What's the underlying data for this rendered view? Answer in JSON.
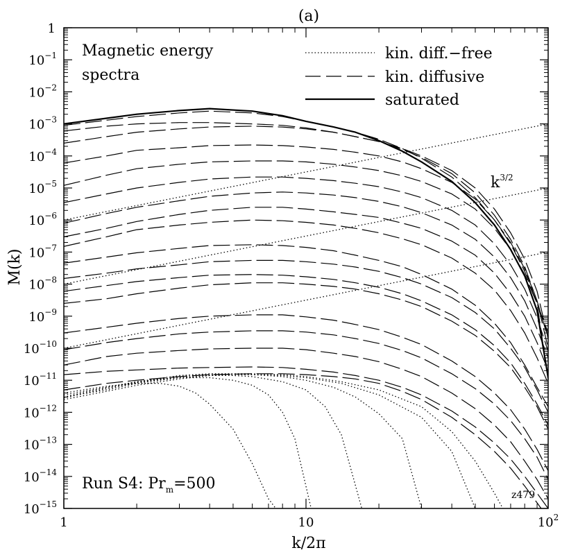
{
  "chart_data": {
    "type": "line",
    "panel_label": "(a)",
    "title_lines": [
      "Magnetic energy",
      "spectra"
    ],
    "xlabel": "k/2π",
    "ylabel": "M(k)",
    "x_scale": "log",
    "y_scale": "log",
    "xlim": [
      1,
      100
    ],
    "ylim": [
      1e-15,
      1
    ],
    "x_ticks": [
      {
        "value": 1,
        "label": "1"
      },
      {
        "value": 10,
        "label": "10"
      },
      {
        "value": 100,
        "label": "10",
        "exp": "2"
      }
    ],
    "y_ticks": [
      {
        "value": 1,
        "label": "1",
        "exp": ""
      },
      {
        "value": 0.1,
        "label": "10",
        "exp": "−1"
      },
      {
        "value": 0.01,
        "label": "10",
        "exp": "−2"
      },
      {
        "value": 0.001,
        "label": "10",
        "exp": "−3"
      },
      {
        "value": 0.0001,
        "label": "10",
        "exp": "−4"
      },
      {
        "value": 1e-05,
        "label": "10",
        "exp": "−5"
      },
      {
        "value": 1e-06,
        "label": "10",
        "exp": "−6"
      },
      {
        "value": 1e-07,
        "label": "10",
        "exp": "−7"
      },
      {
        "value": 1e-08,
        "label": "10",
        "exp": "−8"
      },
      {
        "value": 1e-09,
        "label": "10",
        "exp": "−9"
      },
      {
        "value": 1e-10,
        "label": "10",
        "exp": "−10"
      },
      {
        "value": 1e-11,
        "label": "10",
        "exp": "−11"
      },
      {
        "value": 1e-12,
        "label": "10",
        "exp": "−12"
      },
      {
        "value": 1e-13,
        "label": "10",
        "exp": "−13"
      },
      {
        "value": 1e-14,
        "label": "10",
        "exp": "−14"
      },
      {
        "value": 1e-15,
        "label": "10",
        "exp": "−15"
      }
    ],
    "legend": {
      "placement": "top-right",
      "entries": [
        {
          "label": "kin. diff.−free",
          "style": "dotted"
        },
        {
          "label": "kin. diffusive",
          "style": "dashed"
        },
        {
          "label": "saturated",
          "style": "solid"
        }
      ]
    },
    "annotations": {
      "slope": {
        "base": "k",
        "exp": "3/2"
      },
      "run": {
        "text": "Run S4: Pr",
        "sub": "m",
        "tail": "=500"
      },
      "id": "z479"
    },
    "k_grid": [
      1,
      1.5,
      2,
      3,
      4,
      6,
      8,
      10,
      13,
      16,
      20,
      25,
      30,
      40,
      50,
      60,
      70,
      80,
      90,
      100
    ],
    "series": [
      {
        "style": "solid",
        "y": [
          0.001,
          0.0015,
          0.002,
          0.0026,
          0.003,
          0.0025,
          0.0018,
          0.0012,
          0.0008,
          0.00055,
          0.0003,
          0.00014,
          6.5e-05,
          1.6e-05,
          3.5e-06,
          7e-07,
          1.2e-07,
          1.8e-08,
          1.5e-09,
          1.2e-11
        ]
      },
      {
        "style": "dashed",
        "y": [
          0.0009,
          0.0013,
          0.0017,
          0.0022,
          0.0025,
          0.0022,
          0.0017,
          0.0012,
          0.0008,
          0.00055,
          0.00033,
          0.00017,
          8.5e-05,
          2.2e-05,
          5e-06,
          1e-06,
          1.8e-07,
          2.5e-08,
          2.5e-09,
          1e-11
        ]
      },
      {
        "style": "dashed",
        "y": [
          0.0006,
          0.00085,
          0.001,
          0.0011,
          0.0011,
          0.001,
          0.0009,
          0.00075,
          0.00055,
          0.0004,
          0.00028,
          0.00016,
          9e-05,
          2.8e-05,
          7e-06,
          1.4e-06,
          2.5e-07,
          3.5e-08,
          3e-09,
          1e-10
        ]
      },
      {
        "style": "dashed",
        "y": [
          0.00025,
          0.0004,
          0.00055,
          0.0007,
          0.0008,
          0.00085,
          0.0008,
          0.0007,
          0.00055,
          0.0004,
          0.00028,
          0.00017,
          0.0001,
          3.5e-05,
          1e-05,
          2.2e-06,
          4e-07,
          6e-08,
          6e-09,
          2e-10
        ]
      },
      {
        "style": "dashed",
        "y": [
          6e-05,
          0.0001,
          0.00015,
          0.00018,
          0.00021,
          0.00022,
          0.00021,
          0.00019,
          0.00016,
          0.00013,
          0.0001,
          6.5e-05,
          4e-05,
          1.5e-05,
          4.5e-06,
          1e-06,
          2e-07,
          3e-08,
          3e-09,
          2e-10
        ]
      },
      {
        "style": "dashed",
        "y": [
          1.2e-05,
          2.5e-05,
          4e-05,
          5.5e-05,
          6.5e-05,
          7e-05,
          7e-05,
          6.5e-05,
          5.5e-05,
          4.5e-05,
          3.5e-05,
          2.4e-05,
          1.6e-05,
          6.5e-06,
          2.2e-06,
          5.5e-07,
          1.2e-07,
          2e-08,
          2.5e-09,
          3e-10
        ]
      },
      {
        "style": "dashed",
        "y": [
          3.5e-06,
          6.5e-06,
          1e-05,
          1.5e-05,
          1.9e-05,
          2.2e-05,
          2.2e-05,
          2e-05,
          1.7e-05,
          1.4e-05,
          1.1e-05,
          7.5e-06,
          5e-06,
          2e-06,
          7e-07,
          1.8e-07,
          4e-08,
          7e-09,
          9e-10,
          8e-11
        ]
      },
      {
        "style": "dashed",
        "y": [
          8e-07,
          1.6e-06,
          2.5e-06,
          4e-06,
          5.5e-06,
          7e-06,
          7.5e-06,
          7e-06,
          6e-06,
          5e-06,
          3.8e-06,
          2.6e-06,
          1.7e-06,
          7e-07,
          2.5e-07,
          7e-08,
          1.6e-08,
          3e-09,
          4e-10,
          5e-11
        ]
      },
      {
        "style": "dashed",
        "y": [
          3e-07,
          5.5e-07,
          9e-07,
          1.5e-06,
          2e-06,
          2.5e-06,
          2.5e-06,
          2.2e-06,
          1.8e-06,
          1.5e-06,
          1.2e-06,
          8e-07,
          5.5e-07,
          2.2e-07,
          8e-08,
          2.2e-08,
          5e-09,
          1e-09,
          1.5e-10,
          2e-11
        ]
      },
      {
        "style": "dashed",
        "y": [
          1.5e-07,
          3e-07,
          5e-07,
          7e-07,
          8.5e-07,
          1e-06,
          9.5e-07,
          8.5e-07,
          7e-07,
          5.5e-07,
          4e-07,
          2.6e-07,
          1.7e-07,
          6.5e-08,
          2.2e-08,
          6.5e-09,
          1.5e-09,
          3e-10,
          5e-11,
          8e-12
        ]
      },
      {
        "style": "dashed",
        "y": [
          4.5e-08,
          7e-08,
          9.5e-08,
          1.3e-07,
          1.6e-07,
          1.7e-07,
          1.6e-07,
          1.4e-07,
          1.1e-07,
          8e-08,
          5.5e-08,
          3.5e-08,
          2e-08,
          7e-09,
          2.2e-09,
          6e-10,
          1.5e-10,
          3e-11,
          6e-12,
          1.5e-12
        ]
      },
      {
        "style": "dashed",
        "y": [
          1.5e-08,
          2.2e-08,
          3e-08,
          4e-08,
          5e-08,
          5.5e-08,
          5.5e-08,
          5e-08,
          4.2e-08,
          3.4e-08,
          2.5e-08,
          1.6e-08,
          1e-08,
          3.8e-09,
          1.3e-09,
          4e-10,
          1e-10,
          2.5e-11,
          5e-12,
          1e-12
        ]
      },
      {
        "style": "dashed",
        "y": [
          6e-09,
          9e-09,
          1.2e-08,
          1.6e-08,
          1.9e-08,
          2e-08,
          1.9e-08,
          1.7e-08,
          1.4e-08,
          1.1e-08,
          8e-09,
          5e-09,
          3e-09,
          1.1e-09,
          3.8e-10,
          1.2e-10,
          3.5e-11,
          8e-12,
          1.8e-12,
          4e-13
        ]
      },
      {
        "style": "dashed",
        "y": [
          2.5e-09,
          3.5e-09,
          5e-09,
          7.5e-09,
          9.5e-09,
          1.1e-08,
          1.1e-08,
          1e-08,
          8.5e-09,
          7e-09,
          5e-09,
          3.2e-09,
          2e-09,
          7e-10,
          2.5e-10,
          8e-11,
          2.5e-11,
          6e-12,
          1.5e-12,
          3e-13
        ]
      },
      {
        "style": "dashed",
        "y": [
          3e-10,
          4.5e-10,
          6e-10,
          8.5e-10,
          1e-09,
          1.1e-09,
          1.1e-09,
          9.5e-10,
          7.5e-10,
          5.5e-10,
          3.8e-10,
          2.2e-10,
          1.3e-10,
          4e-11,
          1.3e-11,
          4e-12,
          1.2e-12,
          3e-13,
          7e-14,
          1.5e-14
        ]
      },
      {
        "style": "dashed",
        "y": [
          9e-11,
          1.5e-10,
          2e-10,
          2.8e-10,
          3.2e-10,
          3.5e-10,
          3.5e-10,
          3.2e-10,
          2.6e-10,
          2e-10,
          1.4e-10,
          8.5e-11,
          5e-11,
          1.6e-11,
          5.5e-12,
          1.8e-12,
          5.5e-13,
          1.5e-13,
          4e-14,
          8e-15
        ]
      },
      {
        "style": "dashed",
        "y": [
          3e-11,
          5.5e-11,
          7e-11,
          8.5e-11,
          9.5e-11,
          1e-10,
          1e-10,
          9e-11,
          7e-11,
          5.5e-11,
          3.8e-11,
          2.2e-11,
          1.3e-11,
          4e-12,
          1.3e-12,
          4e-13,
          1.2e-13,
          3e-14,
          8e-15,
          2e-15
        ]
      },
      {
        "style": "dashed",
        "y": [
          1.5e-11,
          1.9e-11,
          2.1e-11,
          2.4e-11,
          2.5e-11,
          2.6e-11,
          2.5e-11,
          2.2e-11,
          1.8e-11,
          1.4e-11,
          1e-11,
          6e-12,
          3.5e-12,
          1.1e-12,
          3.5e-13,
          1.1e-13,
          3.5e-14,
          1e-14,
          3e-15,
          1e-15
        ]
      },
      {
        "style": "dashed",
        "y": [
          5e-12,
          8e-12,
          1e-11,
          1.3e-11,
          1.5e-11,
          1.6e-11,
          1.6e-11,
          1.5e-11,
          1.3e-11,
          1.1e-11,
          8e-12,
          4.5e-12,
          2.5e-12,
          7e-13,
          2e-13,
          6e-14,
          1.8e-14,
          5e-15,
          1.5e-15,
          5e-16
        ]
      },
      {
        "style": "dotted",
        "x": [
          1,
          1.5,
          2,
          3,
          4,
          5,
          6,
          8,
          10,
          13,
          16,
          20,
          25,
          30
        ],
        "y": [
          2.5e-12,
          4.5e-12,
          7e-12,
          1.1e-11,
          1.4e-11,
          1.5e-11,
          1.5e-11,
          1.3e-11,
          1e-11,
          6e-12,
          3e-12,
          9e-13,
          1.5e-13,
          1e-15
        ]
      },
      {
        "style": "dotted",
        "x": [
          1,
          1.5,
          2,
          3,
          4,
          5,
          6,
          8,
          10,
          12,
          14,
          17
        ],
        "y": [
          3e-12,
          5e-12,
          8e-12,
          1.2e-11,
          1.4e-11,
          1.4e-11,
          1.3e-11,
          9e-12,
          5e-12,
          1.5e-12,
          2e-13,
          1e-15
        ]
      },
      {
        "style": "dotted",
        "x": [
          1,
          1.5,
          2,
          3,
          4,
          5,
          6,
          7,
          8,
          9,
          10.5
        ],
        "y": [
          3.5e-12,
          6e-12,
          9e-12,
          1.2e-11,
          1.2e-11,
          1e-11,
          7e-12,
          3.5e-12,
          1e-12,
          1.5e-13,
          1e-15
        ]
      },
      {
        "style": "dotted",
        "x": [
          1,
          1.5,
          2,
          2.5,
          3,
          3.5,
          4,
          5,
          6,
          7,
          7.5
        ],
        "y": [
          4e-12,
          6.5e-12,
          8e-12,
          8e-12,
          6.5e-12,
          4e-12,
          1.8e-12,
          3e-13,
          2.5e-14,
          2e-15,
          1e-15
        ]
      },
      {
        "style": "dotted",
        "x": [
          1,
          1.5,
          2,
          3,
          4,
          6,
          8,
          10,
          14,
          20,
          30,
          40,
          50,
          60,
          65
        ],
        "y": [
          3e-12,
          6e-12,
          9e-12,
          1.4e-11,
          1.6e-11,
          1.6e-11,
          1.5e-11,
          1.3e-11,
          9e-12,
          5e-12,
          1.5e-12,
          2.5e-13,
          3e-14,
          3e-15,
          1e-15
        ]
      },
      {
        "style": "dotted",
        "x": [
          1,
          1.5,
          2,
          3,
          4,
          6,
          8,
          10,
          14,
          20,
          30,
          40,
          50
        ],
        "y": [
          2.8e-12,
          5.5e-12,
          8.5e-12,
          1.3e-11,
          1.5e-11,
          1.5e-11,
          1.4e-11,
          1.2e-11,
          8e-12,
          3.5e-12,
          7e-13,
          6e-14,
          1e-15
        ]
      },
      {
        "style": "dotted",
        "x": [
          1,
          100
        ],
        "y": [
          1e-06,
          0.001
        ]
      },
      {
        "style": "dotted",
        "x": [
          1,
          100
        ],
        "y": [
          1e-08,
          1e-05
        ]
      },
      {
        "style": "dotted",
        "x": [
          1,
          100
        ],
        "y": [
          1e-10,
          1e-07
        ]
      }
    ]
  }
}
